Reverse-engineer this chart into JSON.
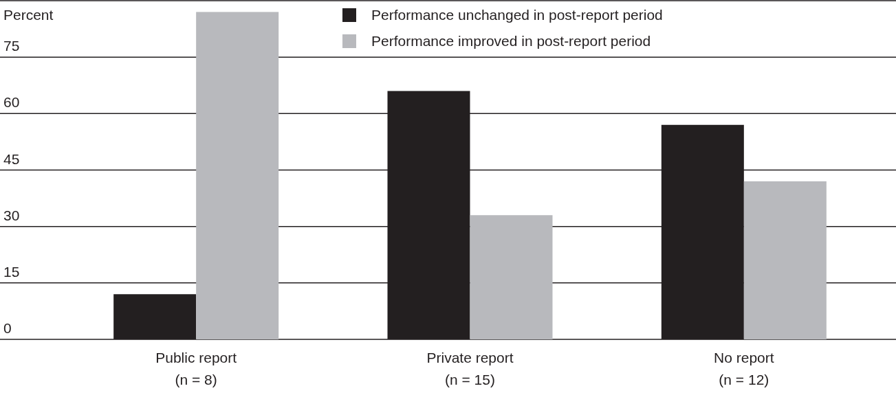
{
  "chart_data": {
    "type": "bar",
    "ylabel": "Percent",
    "categories": [
      "Public report\n(n = 8)",
      "Private report\n(n = 15)",
      "No report\n(n = 12)"
    ],
    "series": [
      {
        "name": "Performance unchanged in post-report period",
        "color": "#231f20",
        "values": [
          12,
          66,
          57
        ]
      },
      {
        "name": "Performance improved in post-report period",
        "color": "#b8b9bd",
        "values": [
          87,
          33,
          42
        ]
      }
    ],
    "ylim": [
      0,
      90
    ],
    "yticks": [
      0,
      15,
      30,
      45,
      60,
      75,
      {
        "value": 90,
        "label": null
      }
    ],
    "grid": "y",
    "legend": "top"
  }
}
